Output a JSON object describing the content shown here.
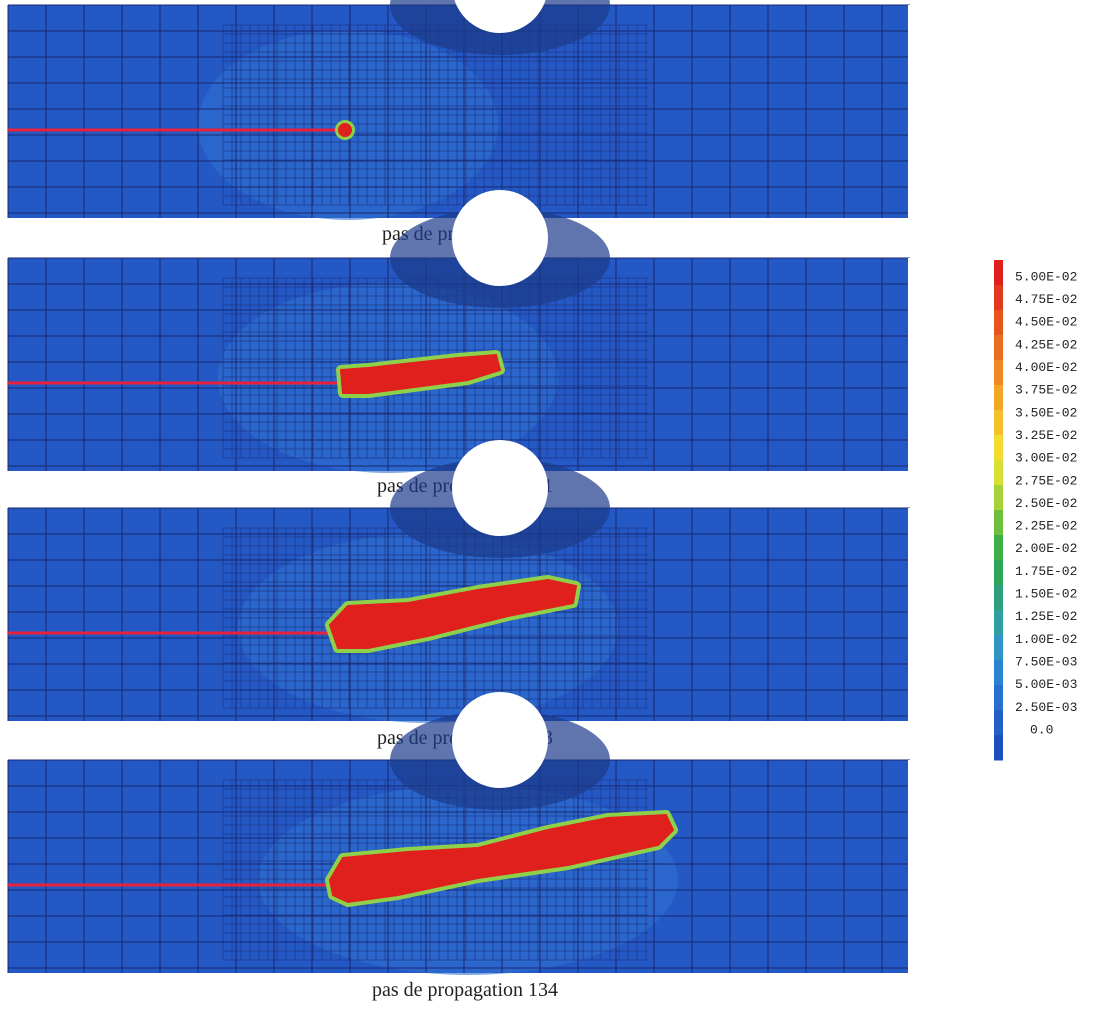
{
  "panels": [
    {
      "caption": "pas de propagation 1"
    },
    {
      "caption": "pas de propagation 61"
    },
    {
      "caption": "pas de propagation 93"
    },
    {
      "caption": "pas de propagation 134"
    }
  ],
  "colorbar": {
    "labels": [
      "5.00E-02",
      "4.75E-02",
      "4.50E-02",
      "4.25E-02",
      "4.00E-02",
      "3.75E-02",
      "3.50E-02",
      "3.25E-02",
      "3.00E-02",
      "2.75E-02",
      "2.50E-02",
      "2.25E-02",
      "2.00E-02",
      "1.75E-02",
      "1.50E-02",
      "1.25E-02",
      "1.00E-02",
      "7.50E-03",
      "5.00E-03",
      "2.50E-03",
      "0.0"
    ],
    "colors": [
      "#e0201c",
      "#e23a1c",
      "#e6561c",
      "#ea6e20",
      "#ef8a22",
      "#f3a526",
      "#f6c02a",
      "#f4dc2e",
      "#d8e033",
      "#a8d23a",
      "#6fbf3e",
      "#3fae45",
      "#2ea35a",
      "#2d9f7d",
      "#2f9fa2",
      "#2f95c4",
      "#2c83d4",
      "#2870d0",
      "#2160c8",
      "#1d50bf"
    ]
  }
}
